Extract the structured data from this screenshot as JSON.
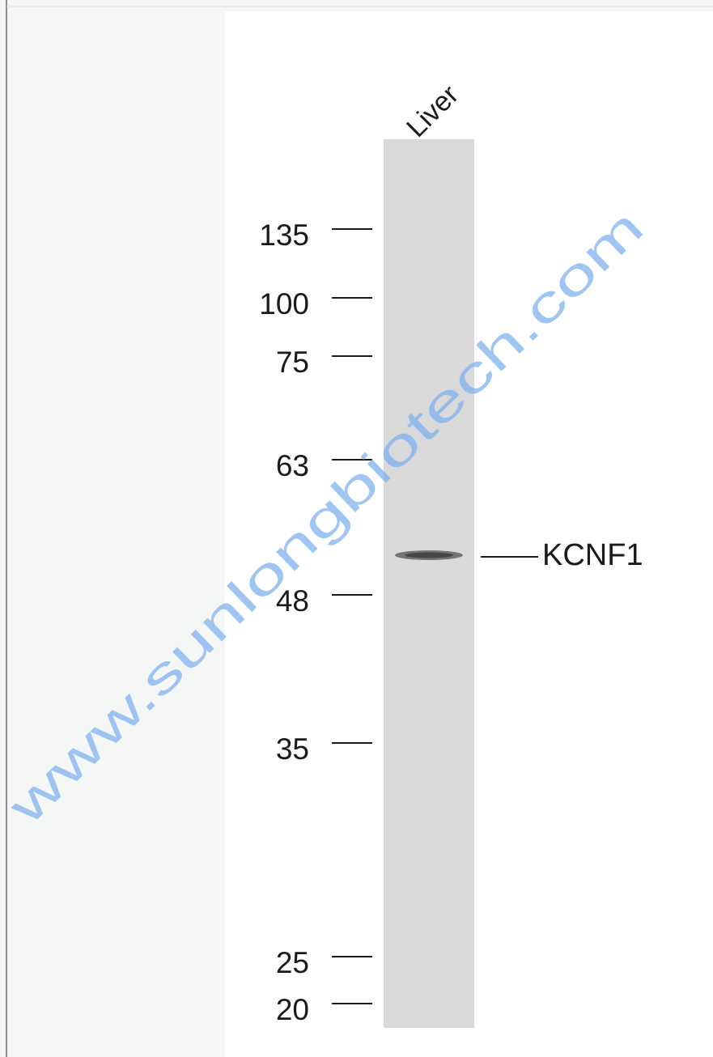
{
  "blot": {
    "lane_label": "Liver",
    "markers": [
      135,
      100,
      75,
      63,
      48,
      35,
      25,
      20
    ],
    "band_label": "KCNF1",
    "watermark": "www.sunlongbiotech.com"
  }
}
